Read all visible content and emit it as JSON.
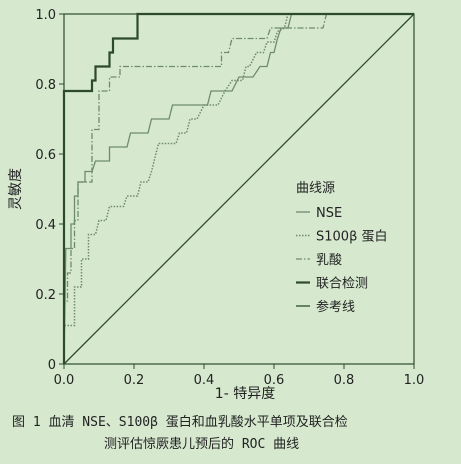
{
  "caption": {
    "line1": "图 1  血清 NSE、S100β 蛋白和血乳酸水平单项及联合检",
    "line2": "测评估惊厥患儿预后的 ROC 曲线"
  },
  "chart_data": {
    "type": "line",
    "title": "",
    "xlabel": "1- 特异度",
    "ylabel": "灵敏度",
    "xlim": [
      0,
      1
    ],
    "ylim": [
      0,
      1
    ],
    "x_ticks": [
      "0.0",
      "0.2",
      "0.4",
      "0.6",
      "0.8",
      "1.0"
    ],
    "y_ticks": [
      "0",
      "0.2",
      "0.4",
      "0.6",
      "0.8",
      "1.0"
    ],
    "grid": false,
    "legend": {
      "title": "曲线源",
      "placement": "right-middle",
      "entries": [
        "NSE",
        "S100β 蛋白",
        "乳酸",
        "联合检测",
        "参考线"
      ]
    },
    "series": [
      {
        "name": "NSE",
        "color": "#6f8a6f",
        "style": "solid-thin",
        "points": [
          [
            0,
            0
          ],
          [
            0.005,
            0.33
          ],
          [
            0.02,
            0.33
          ],
          [
            0.02,
            0.4
          ],
          [
            0.03,
            0.4
          ],
          [
            0.03,
            0.48
          ],
          [
            0.04,
            0.48
          ],
          [
            0.04,
            0.52
          ],
          [
            0.06,
            0.52
          ],
          [
            0.06,
            0.55
          ],
          [
            0.08,
            0.55
          ],
          [
            0.09,
            0.58
          ],
          [
            0.13,
            0.58
          ],
          [
            0.13,
            0.62
          ],
          [
            0.18,
            0.62
          ],
          [
            0.19,
            0.66
          ],
          [
            0.24,
            0.66
          ],
          [
            0.25,
            0.7
          ],
          [
            0.3,
            0.7
          ],
          [
            0.31,
            0.74
          ],
          [
            0.41,
            0.74
          ],
          [
            0.42,
            0.78
          ],
          [
            0.48,
            0.78
          ],
          [
            0.5,
            0.82
          ],
          [
            0.54,
            0.82
          ],
          [
            0.56,
            0.85
          ],
          [
            0.58,
            0.85
          ],
          [
            0.59,
            0.89
          ],
          [
            0.6,
            0.89
          ],
          [
            0.61,
            0.93
          ],
          [
            0.62,
            0.96
          ],
          [
            0.64,
            0.96
          ],
          [
            0.65,
            1.0
          ],
          [
            1.0,
            1.0
          ]
        ]
      },
      {
        "name": "S100β 蛋白",
        "color": "#6f8a6f",
        "style": "dotted",
        "points": [
          [
            0,
            0
          ],
          [
            0,
            0.11
          ],
          [
            0.03,
            0.11
          ],
          [
            0.03,
            0.22
          ],
          [
            0.05,
            0.22
          ],
          [
            0.05,
            0.3
          ],
          [
            0.07,
            0.3
          ],
          [
            0.07,
            0.37
          ],
          [
            0.09,
            0.37
          ],
          [
            0.1,
            0.41
          ],
          [
            0.12,
            0.41
          ],
          [
            0.13,
            0.45
          ],
          [
            0.17,
            0.45
          ],
          [
            0.18,
            0.48
          ],
          [
            0.21,
            0.48
          ],
          [
            0.22,
            0.52
          ],
          [
            0.24,
            0.52
          ],
          [
            0.25,
            0.55
          ],
          [
            0.26,
            0.59
          ],
          [
            0.27,
            0.63
          ],
          [
            0.32,
            0.63
          ],
          [
            0.33,
            0.66
          ],
          [
            0.35,
            0.66
          ],
          [
            0.36,
            0.7
          ],
          [
            0.38,
            0.7
          ],
          [
            0.4,
            0.74
          ],
          [
            0.44,
            0.74
          ],
          [
            0.46,
            0.78
          ],
          [
            0.48,
            0.81
          ],
          [
            0.51,
            0.81
          ],
          [
            0.52,
            0.85
          ],
          [
            0.53,
            0.85
          ],
          [
            0.55,
            0.89
          ],
          [
            0.57,
            0.89
          ],
          [
            0.58,
            0.92
          ],
          [
            0.6,
            0.92
          ],
          [
            0.61,
            0.95
          ],
          [
            0.63,
            0.96
          ],
          [
            0.64,
            1.0
          ],
          [
            1.0,
            1.0
          ]
        ]
      },
      {
        "name": "乳酸",
        "color": "#6f8a6f",
        "style": "dash-dot",
        "points": [
          [
            0,
            0
          ],
          [
            0,
            0.18
          ],
          [
            0.01,
            0.18
          ],
          [
            0.01,
            0.26
          ],
          [
            0.02,
            0.26
          ],
          [
            0.02,
            0.33
          ],
          [
            0.03,
            0.33
          ],
          [
            0.03,
            0.41
          ],
          [
            0.04,
            0.41
          ],
          [
            0.04,
            0.52
          ],
          [
            0.08,
            0.52
          ],
          [
            0.08,
            0.67
          ],
          [
            0.1,
            0.67
          ],
          [
            0.1,
            0.78
          ],
          [
            0.13,
            0.78
          ],
          [
            0.13,
            0.82
          ],
          [
            0.16,
            0.82
          ],
          [
            0.16,
            0.85
          ],
          [
            0.2,
            0.85
          ],
          [
            0.2,
            0.85
          ],
          [
            0.45,
            0.85
          ],
          [
            0.45,
            0.89
          ],
          [
            0.47,
            0.89
          ],
          [
            0.48,
            0.93
          ],
          [
            0.58,
            0.93
          ],
          [
            0.59,
            0.96
          ],
          [
            0.74,
            0.96
          ],
          [
            0.75,
            1.0
          ],
          [
            1.0,
            1.0
          ]
        ]
      },
      {
        "name": "联合检测",
        "color": "#2e4a2e",
        "style": "solid-thick",
        "points": [
          [
            0,
            0
          ],
          [
            0,
            0.78
          ],
          [
            0.08,
            0.78
          ],
          [
            0.08,
            0.81
          ],
          [
            0.09,
            0.81
          ],
          [
            0.09,
            0.85
          ],
          [
            0.13,
            0.85
          ],
          [
            0.13,
            0.89
          ],
          [
            0.14,
            0.89
          ],
          [
            0.14,
            0.93
          ],
          [
            0.21,
            0.93
          ],
          [
            0.21,
            1.0
          ],
          [
            1.0,
            1.0
          ]
        ]
      },
      {
        "name": "参考线",
        "color": "#2e4a2e",
        "style": "solid",
        "points": [
          [
            0,
            0
          ],
          [
            1,
            1
          ]
        ]
      }
    ]
  }
}
